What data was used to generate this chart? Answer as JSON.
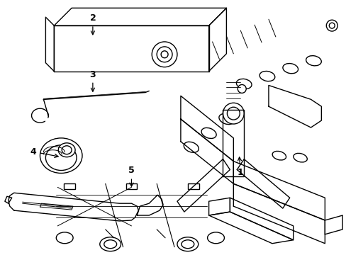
{
  "background_color": "#ffffff",
  "line_color": "#000000",
  "lw": 1.0,
  "figsize": [
    4.89,
    3.6
  ],
  "dpi": 100
}
